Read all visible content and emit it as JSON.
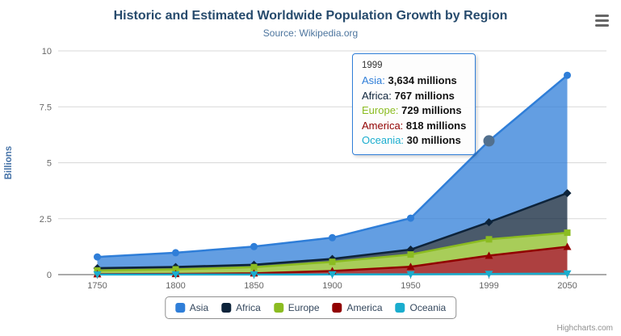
{
  "header": {
    "title": "Historic and Estimated Worldwide Population Growth by Region",
    "subtitle": "Source: Wikipedia.org"
  },
  "icons": {
    "context_menu": "hamburger-icon"
  },
  "chart_data": {
    "type": "area",
    "stacked": true,
    "categories": [
      "1750",
      "1800",
      "1850",
      "1900",
      "1950",
      "1999",
      "2050"
    ],
    "unit": "millions",
    "series": [
      {
        "name": "Asia",
        "color": "#2f7ed8",
        "marker": "circle",
        "values": [
          502,
          635,
          809,
          947,
          1402,
          3634,
          5268
        ]
      },
      {
        "name": "Africa",
        "color": "#0d233a",
        "marker": "diamond",
        "values": [
          106,
          107,
          111,
          133,
          221,
          767,
          1766
        ]
      },
      {
        "name": "Europe",
        "color": "#8bbc21",
        "marker": "square",
        "values": [
          163,
          203,
          276,
          408,
          547,
          729,
          628
        ]
      },
      {
        "name": "America",
        "color": "#910000",
        "marker": "triangle",
        "values": [
          18,
          31,
          54,
          156,
          339,
          818,
          1201
        ]
      },
      {
        "name": "Oceania",
        "color": "#1aadce",
        "marker": "triangle-down",
        "values": [
          2,
          2,
          2,
          6,
          13,
          30,
          46
        ]
      }
    ],
    "yaxis": {
      "title": "Billions",
      "ticks": [
        0,
        2.5,
        5,
        7.5,
        10
      ],
      "max": 10,
      "title_color": "#4572a7"
    },
    "grid": true,
    "legend_position": "bottom-center",
    "fill_opacity": 0.75,
    "hover_point": {
      "series": "Asia",
      "category": "1999",
      "color": "#52708e"
    }
  },
  "tooltip": {
    "header": "1999",
    "rows": [
      {
        "label": "Asia",
        "value": "3,634 millions",
        "color": "#2f7ed8"
      },
      {
        "label": "Africa",
        "value": "767 millions",
        "color": "#0d233a"
      },
      {
        "label": "Europe",
        "value": "729 millions",
        "color": "#8bbc21"
      },
      {
        "label": "America",
        "value": "818 millions",
        "color": "#910000"
      },
      {
        "label": "Oceania",
        "value": "30 millions",
        "color": "#1aadce"
      }
    ]
  },
  "credits": {
    "text": "Highcharts.com"
  }
}
